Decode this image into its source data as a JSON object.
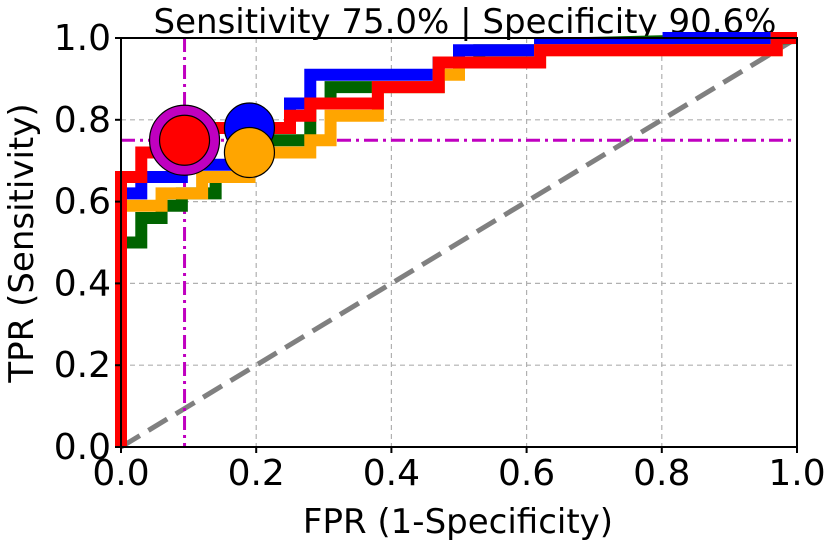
{
  "chart_data": {
    "type": "line",
    "title": "Sensitivity 75.0% | Specificity 90.6%",
    "xlabel": "FPR (1-Specificity)",
    "ylabel": "TPR (Sensitivity)",
    "xlim": [
      0,
      1
    ],
    "ylim": [
      0,
      1
    ],
    "xticks": [
      "0.0",
      "0.2",
      "0.4",
      "0.6",
      "0.8",
      "1.0"
    ],
    "yticks": [
      "0.0",
      "0.2",
      "0.4",
      "0.6",
      "0.8",
      "1.0"
    ],
    "xtick_values": [
      0,
      0.2,
      0.4,
      0.6,
      0.8,
      1.0
    ],
    "ytick_values": [
      0,
      0.2,
      0.4,
      0.6,
      0.8,
      1.0
    ],
    "grid": true,
    "series": [
      {
        "name": "green",
        "color": "#006400",
        "x": [
          0.0,
          0.0,
          0.03,
          0.03,
          0.06,
          0.06,
          0.09,
          0.09,
          0.14,
          0.14,
          0.19,
          0.19,
          0.28,
          0.28,
          0.31,
          0.31,
          0.47,
          0.47,
          0.53,
          0.53,
          0.62,
          0.62,
          1.0
        ],
        "y": [
          0.0,
          0.5,
          0.5,
          0.56,
          0.56,
          0.59,
          0.59,
          0.62,
          0.62,
          0.66,
          0.66,
          0.75,
          0.75,
          0.84,
          0.84,
          0.88,
          0.88,
          0.94,
          0.94,
          0.97,
          0.97,
          0.985,
          1.0
        ]
      },
      {
        "name": "blue",
        "color": "#0000ff",
        "x": [
          0.0,
          0.0,
          0.03,
          0.03,
          0.09,
          0.09,
          0.19,
          0.19,
          0.25,
          0.25,
          0.28,
          0.28,
          0.47,
          0.47,
          0.5,
          0.5,
          0.62,
          0.62,
          0.81,
          0.81,
          1.0
        ],
        "y": [
          0.0,
          0.62,
          0.62,
          0.66,
          0.66,
          0.69,
          0.69,
          0.78,
          0.78,
          0.84,
          0.84,
          0.91,
          0.91,
          0.94,
          0.94,
          0.97,
          0.97,
          0.985,
          0.985,
          1.0,
          1.0
        ]
      },
      {
        "name": "orange",
        "color": "#ffa500",
        "x": [
          0.0,
          0.0,
          0.06,
          0.06,
          0.12,
          0.12,
          0.19,
          0.19,
          0.28,
          0.28,
          0.31,
          0.31,
          0.38,
          0.38,
          0.47,
          0.47,
          0.5,
          0.5,
          0.62,
          0.62,
          0.97,
          0.97,
          1.0
        ],
        "y": [
          0.0,
          0.59,
          0.59,
          0.62,
          0.62,
          0.66,
          0.66,
          0.72,
          0.72,
          0.75,
          0.75,
          0.81,
          0.81,
          0.88,
          0.88,
          0.91,
          0.91,
          0.94,
          0.94,
          0.97,
          0.97,
          1.0,
          1.0
        ]
      },
      {
        "name": "red",
        "color": "#ff0000",
        "x": [
          0.0,
          0.0,
          0.03,
          0.03,
          0.06,
          0.06,
          0.09,
          0.09,
          0.12,
          0.12,
          0.19,
          0.19,
          0.25,
          0.25,
          0.28,
          0.28,
          0.31,
          0.31,
          0.34,
          0.34,
          0.38,
          0.38,
          0.47,
          0.47,
          0.62,
          0.62,
          0.97,
          0.97,
          1.0
        ],
        "y": [
          0.0,
          0.66,
          0.66,
          0.72,
          0.72,
          0.75,
          0.75,
          0.75,
          0.75,
          0.78,
          0.78,
          0.78,
          0.78,
          0.81,
          0.81,
          0.84,
          0.84,
          0.84,
          0.84,
          0.84,
          0.84,
          0.88,
          0.88,
          0.94,
          0.94,
          0.97,
          0.97,
          1.0,
          1.0
        ]
      }
    ],
    "markers": [
      {
        "name": "magenta-selected",
        "x": 0.094,
        "y": 0.75,
        "color": "#c000c0",
        "size": "large"
      },
      {
        "name": "blue-operating-point",
        "x": 0.19,
        "y": 0.78,
        "color": "#0000ff",
        "size": "medium"
      },
      {
        "name": "orange-operating-point",
        "x": 0.19,
        "y": 0.72,
        "color": "#ffa500",
        "size": "medium"
      },
      {
        "name": "red-operating-point",
        "x": 0.094,
        "y": 0.75,
        "color": "#ff0000",
        "size": "medium"
      }
    ],
    "reference_lines": {
      "diagonal": {
        "from": [
          0,
          0
        ],
        "to": [
          1,
          1
        ],
        "color": "#808080",
        "style": "dashed"
      },
      "vertical": {
        "x": 0.094,
        "color": "#c000c0",
        "style": "dashdot"
      },
      "horizontal": {
        "y": 0.75,
        "color": "#c000c0",
        "style": "dashdot"
      }
    }
  }
}
